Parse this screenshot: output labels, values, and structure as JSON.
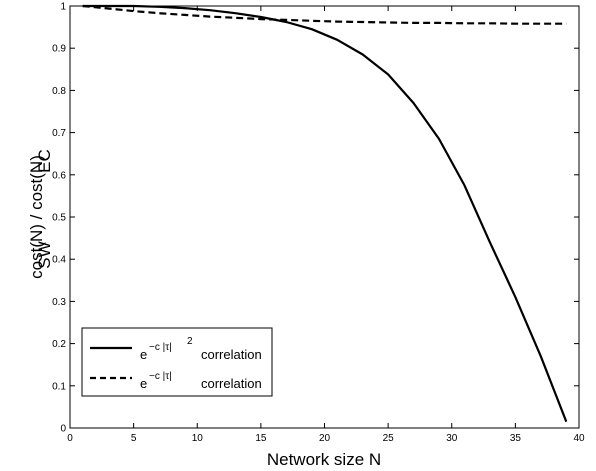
{
  "chart_data": {
    "type": "line",
    "xlabel": "Network size N",
    "ylabel": "cost(N) / cost(N)",
    "ylabel_sub1": "SW",
    "ylabel_sub2": "EC",
    "xlim": [
      0,
      40
    ],
    "ylim": [
      0,
      1
    ],
    "xticks": [
      0,
      5,
      10,
      15,
      20,
      25,
      30,
      35,
      40
    ],
    "yticks": [
      0,
      0.1,
      0.2,
      0.3,
      0.4,
      0.5,
      0.6,
      0.7,
      0.8,
      0.9,
      1
    ],
    "ytick_labels": [
      "0",
      "0.1",
      "0.2",
      "0.3",
      "0.4",
      "0.5",
      "0.6",
      "0.7",
      "0.8",
      "0.9",
      "1"
    ],
    "grid": false,
    "legend_position": "bottom-left",
    "series": [
      {
        "name_base": "e",
        "name_exp": "−c |τ|",
        "name_exp2": "2",
        "name_suffix": "correlation",
        "style": "solid",
        "x": [
          1,
          3,
          5,
          7,
          9,
          11,
          13,
          15,
          17,
          19,
          21,
          23,
          25,
          27,
          29,
          31,
          33,
          35,
          37,
          39
        ],
        "values": [
          1.0,
          1.0,
          1.0,
          0.998,
          0.995,
          0.99,
          0.983,
          0.974,
          0.962,
          0.945,
          0.92,
          0.885,
          0.838,
          0.77,
          0.685,
          0.575,
          0.44,
          0.31,
          0.17,
          0.015
        ]
      },
      {
        "name_base": "e",
        "name_exp": "−c |τ|",
        "name_exp2": "",
        "name_suffix": "correlation",
        "style": "dashed",
        "x": [
          1,
          3,
          5,
          7,
          9,
          11,
          13,
          15,
          17,
          19,
          21,
          23,
          25,
          27,
          29,
          31,
          33,
          35,
          37,
          39
        ],
        "values": [
          1.0,
          0.994,
          0.988,
          0.983,
          0.979,
          0.975,
          0.972,
          0.969,
          0.967,
          0.965,
          0.963,
          0.962,
          0.961,
          0.96,
          0.96,
          0.959,
          0.959,
          0.958,
          0.958,
          0.958
        ]
      }
    ]
  }
}
